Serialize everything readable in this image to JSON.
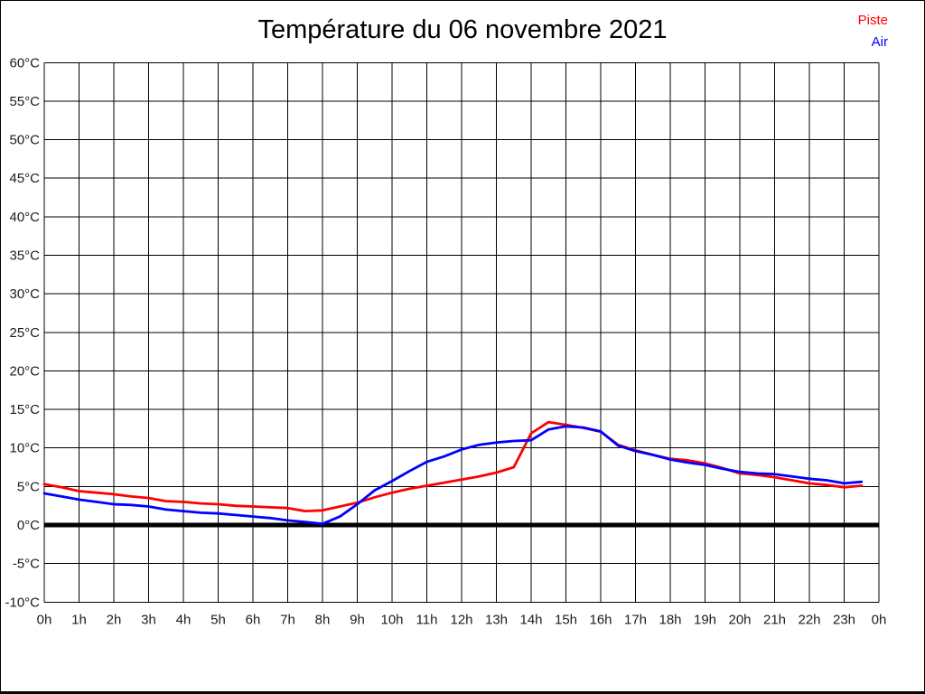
{
  "title": "Température du 06 novembre 2021",
  "legend": {
    "piste_label": "Piste",
    "air_label": "Air"
  },
  "colors": {
    "piste": "#ff0000",
    "air": "#0000ff",
    "grid": "#000000",
    "zero_line": "#000000",
    "background": "#ffffff",
    "border": "#000000"
  },
  "chart_data": {
    "type": "line",
    "title": "Température du 06 novembre 2021",
    "xlabel": "",
    "ylabel": "",
    "xlim": [
      0,
      24
    ],
    "ylim": [
      -10,
      60
    ],
    "y_step": 5,
    "grid": true,
    "zero_line_bold": true,
    "legend_position": "top-right",
    "x_tick_labels": [
      "0h",
      "1h",
      "2h",
      "3h",
      "4h",
      "5h",
      "6h",
      "7h",
      "8h",
      "9h",
      "10h",
      "11h",
      "12h",
      "13h",
      "14h",
      "15h",
      "16h",
      "17h",
      "18h",
      "19h",
      "20h",
      "21h",
      "22h",
      "23h",
      "0h"
    ],
    "y_tick_labels": [
      "60°C",
      "55°C",
      "50°C",
      "45°C",
      "40°C",
      "35°C",
      "30°C",
      "25°C",
      "20°C",
      "15°C",
      "10°C",
      "5°C",
      "0°C",
      "-5°C",
      "-10°C"
    ],
    "x": [
      0,
      0.5,
      1,
      1.5,
      2,
      2.5,
      3,
      3.5,
      4,
      4.5,
      5,
      5.5,
      6,
      6.5,
      7,
      7.5,
      8,
      8.5,
      9,
      9.5,
      10,
      10.5,
      11,
      11.5,
      12,
      12.5,
      13,
      13.5,
      14,
      14.5,
      15,
      15.5,
      16,
      16.5,
      17,
      17.5,
      18,
      18.5,
      19,
      19.5,
      20,
      20.5,
      21,
      21.5,
      22,
      22.5,
      23,
      23.5
    ],
    "series": [
      {
        "name": "Piste",
        "color": "#ff0000",
        "values": [
          5.3,
          4.9,
          4.4,
          4.2,
          4.0,
          3.7,
          3.5,
          3.1,
          3.0,
          2.8,
          2.7,
          2.5,
          2.4,
          2.3,
          2.2,
          1.8,
          1.9,
          2.4,
          2.9,
          3.6,
          4.2,
          4.7,
          5.1,
          5.5,
          5.9,
          6.3,
          6.8,
          7.5,
          11.9,
          13.35,
          13.0,
          12.6,
          12.1,
          10.4,
          9.7,
          9.1,
          8.6,
          8.4,
          8.0,
          7.4,
          6.7,
          6.5,
          6.2,
          5.8,
          5.4,
          5.2,
          4.9,
          5.1
        ]
      },
      {
        "name": "Air",
        "color": "#0000ff",
        "values": [
          4.1,
          3.7,
          3.3,
          3.0,
          2.7,
          2.6,
          2.4,
          2.0,
          1.8,
          1.6,
          1.5,
          1.3,
          1.1,
          0.9,
          0.6,
          0.4,
          0.15,
          1.1,
          2.7,
          4.5,
          5.7,
          7.0,
          8.2,
          8.9,
          9.8,
          10.4,
          10.7,
          10.9,
          11.0,
          12.4,
          12.8,
          12.65,
          12.15,
          10.3,
          9.6,
          9.1,
          8.5,
          8.1,
          7.8,
          7.3,
          6.9,
          6.7,
          6.6,
          6.3,
          6.0,
          5.8,
          5.4,
          5.6
        ]
      }
    ]
  }
}
